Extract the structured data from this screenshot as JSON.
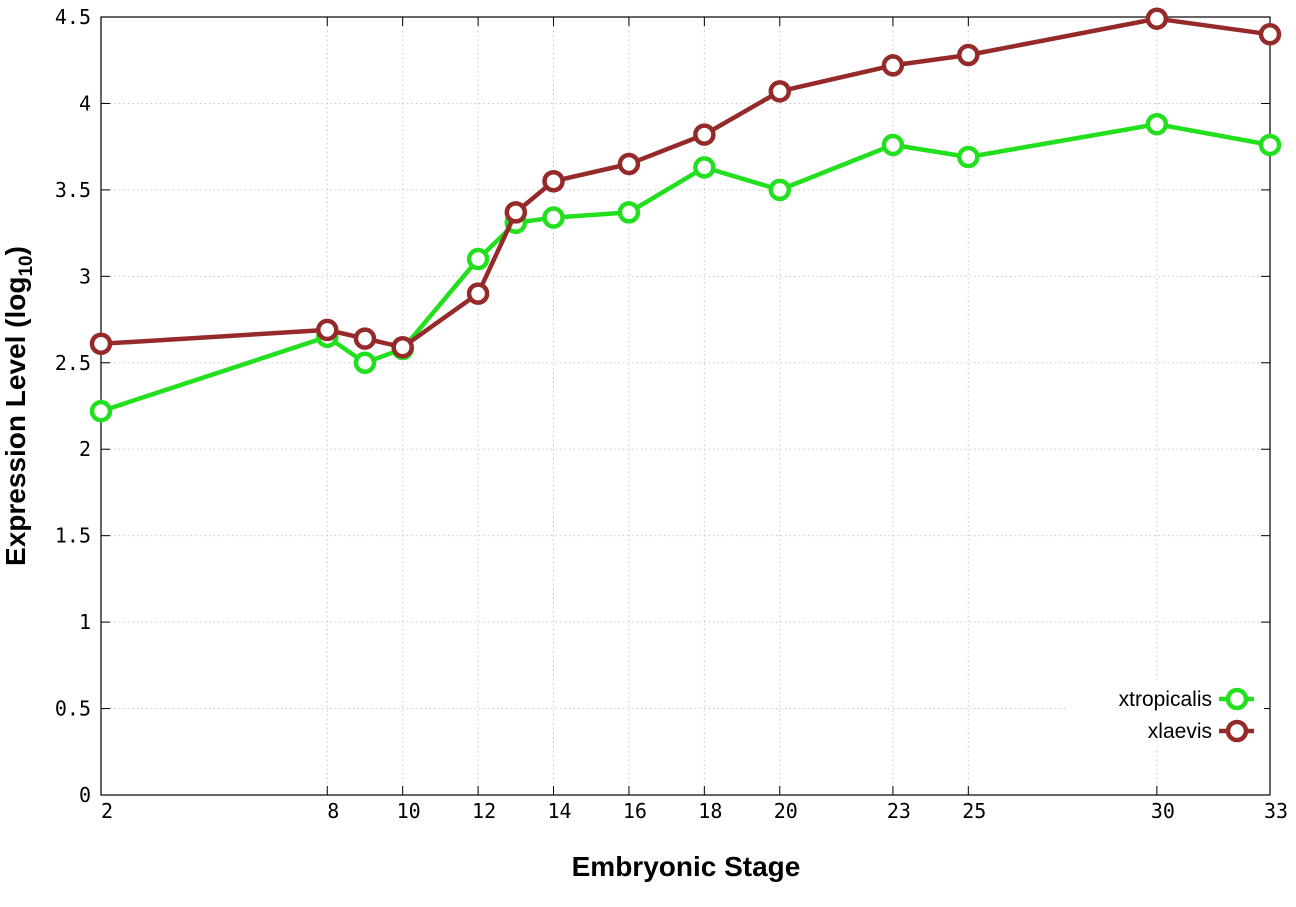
{
  "chart_data": {
    "type": "line",
    "xlabel": "Embryonic Stage",
    "ylabel_main": "Expression Level (log",
    "ylabel_sub": "10",
    "ylabel_close": ")",
    "xlim": [
      2,
      33
    ],
    "ylim": [
      0,
      4.5
    ],
    "x_ticks": [
      2,
      8,
      10,
      12,
      14,
      16,
      18,
      20,
      23,
      25,
      30,
      33
    ],
    "y_ticks": [
      0,
      0.5,
      1,
      1.5,
      2,
      2.5,
      3,
      3.5,
      4,
      4.5
    ],
    "y_tick_labels": [
      "0",
      "0.5",
      "1",
      "1.5",
      "2",
      "2.5",
      "3",
      "3.5",
      "4",
      "4.5"
    ],
    "grid": true,
    "legend_position": "bottom-right",
    "x": [
      2,
      8,
      9,
      10,
      12,
      13,
      14,
      16,
      18,
      20,
      23,
      25,
      30,
      33
    ],
    "series": [
      {
        "name": "xtropicalis",
        "color": "#22e01e",
        "values": [
          2.22,
          2.65,
          2.5,
          2.58,
          3.1,
          3.31,
          3.34,
          3.37,
          3.63,
          3.5,
          3.76,
          3.69,
          3.88,
          3.76
        ]
      },
      {
        "name": "xlaevis",
        "color": "#962a2a",
        "values": [
          2.61,
          2.69,
          2.64,
          2.59,
          2.9,
          3.37,
          3.55,
          3.65,
          3.82,
          4.07,
          4.22,
          4.28,
          4.49,
          4.4
        ]
      }
    ]
  }
}
